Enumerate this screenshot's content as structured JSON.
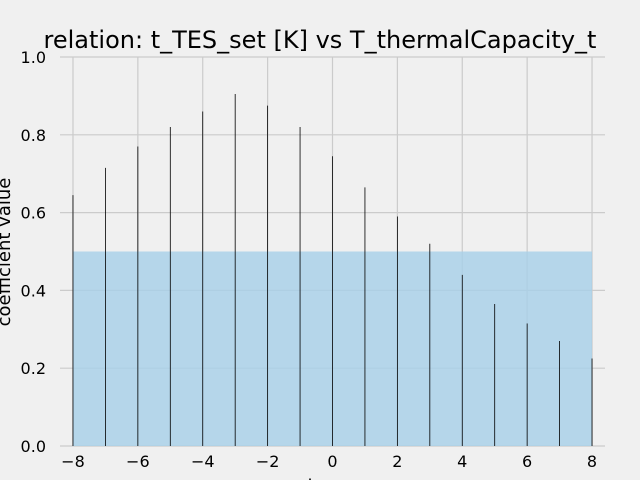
{
  "chart_data": {
    "type": "bar",
    "title": "relation: t_TES_set [K] vs T_thermalCapacity_t",
    "xlabel": "l",
    "ylabel": "coefficient value",
    "xlim": [
      -8.4,
      8.4
    ],
    "ylim": [
      0,
      1.0
    ],
    "x_ticks": [
      -8,
      -6,
      -4,
      -2,
      0,
      2,
      4,
      6,
      8
    ],
    "y_ticks": [
      0.0,
      0.2,
      0.4,
      0.6,
      0.8,
      1.0
    ],
    "x_tick_labels": [
      "−8",
      "−6",
      "−4",
      "−2",
      "0",
      "2",
      "4",
      "6",
      "8"
    ],
    "y_tick_labels": [
      "0.0",
      "0.2",
      "0.4",
      "0.6",
      "0.8",
      "1.0"
    ],
    "grid": true,
    "lags": [
      -8,
      -7,
      -6,
      -5,
      -4,
      -3,
      -2,
      -1,
      0,
      1,
      2,
      3,
      4,
      5,
      6,
      7,
      8
    ],
    "values": [
      0.645,
      0.715,
      0.77,
      0.82,
      0.86,
      0.905,
      0.875,
      0.82,
      0.745,
      0.665,
      0.59,
      0.52,
      0.44,
      0.365,
      0.315,
      0.27,
      0.225
    ],
    "threshold_band": {
      "x_from": -8,
      "x_to": 8,
      "y_from": 0,
      "y_to": 0.5
    },
    "colors": {
      "bars": "#000000",
      "band": "#a6d0e8",
      "grid": "#cbcbcb",
      "background": "#f0f0f0"
    }
  }
}
